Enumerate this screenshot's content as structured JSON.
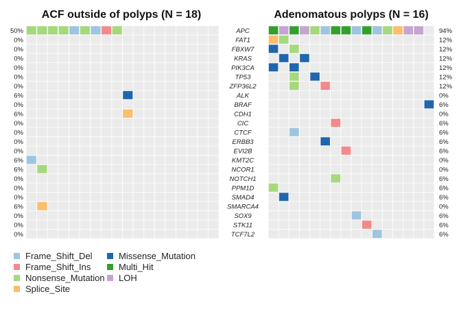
{
  "chart_data": [
    {
      "type": "heatmap",
      "title": "ACF outside of polyps (N = 18)",
      "samples": 18,
      "genes": [
        "APC",
        "FAT1",
        "FBXW7",
        "KRAS",
        "PIK3CA",
        "TP53",
        "ZFP36L2",
        "ALK",
        "BRAF",
        "CDH1",
        "CIC",
        "CTCF",
        "ERBB3",
        "EVI2B",
        "KMT2C",
        "NCOR1",
        "NOTCH1",
        "PPM1D",
        "SMAD4",
        "SMARCA4",
        "SOX9",
        "STK11",
        "TCF7L2"
      ],
      "percentages": [
        "50%",
        "0%",
        "0%",
        "0%",
        "0%",
        "0%",
        "0%",
        "6%",
        "0%",
        "6%",
        "0%",
        "0%",
        "0%",
        "0%",
        "6%",
        "6%",
        "0%",
        "0%",
        "0%",
        "6%",
        "0%",
        "0%",
        "0%"
      ],
      "cells": [
        {
          "gene": "APC",
          "sample": 1,
          "type": "Nonsense_Mutation"
        },
        {
          "gene": "APC",
          "sample": 2,
          "type": "Nonsense_Mutation"
        },
        {
          "gene": "APC",
          "sample": 3,
          "type": "Nonsense_Mutation"
        },
        {
          "gene": "APC",
          "sample": 4,
          "type": "Nonsense_Mutation"
        },
        {
          "gene": "APC",
          "sample": 5,
          "type": "Frame_Shift_Del"
        },
        {
          "gene": "APC",
          "sample": 6,
          "type": "Nonsense_Mutation"
        },
        {
          "gene": "APC",
          "sample": 7,
          "type": "Frame_Shift_Del"
        },
        {
          "gene": "APC",
          "sample": 8,
          "type": "Frame_Shift_Ins"
        },
        {
          "gene": "APC",
          "sample": 9,
          "type": "Nonsense_Mutation"
        },
        {
          "gene": "ALK",
          "sample": 10,
          "type": "Missense_Mutation"
        },
        {
          "gene": "CDH1",
          "sample": 10,
          "type": "Splice_Site"
        },
        {
          "gene": "KMT2C",
          "sample": 1,
          "type": "Frame_Shift_Del"
        },
        {
          "gene": "NCOR1",
          "sample": 2,
          "type": "Nonsense_Mutation"
        },
        {
          "gene": "SMARCA4",
          "sample": 2,
          "type": "Splice_Site"
        }
      ]
    },
    {
      "type": "heatmap",
      "title": "Adenomatous polyps (N = 16)",
      "samples": 16,
      "genes": [
        "APC",
        "FAT1",
        "FBXW7",
        "KRAS",
        "PIK3CA",
        "TP53",
        "ZFP36L2",
        "ALK",
        "BRAF",
        "CDH1",
        "CIC",
        "CTCF",
        "ERBB3",
        "EVI2B",
        "KMT2C",
        "NCOR1",
        "NOTCH1",
        "PPM1D",
        "SMAD4",
        "SMARCA4",
        "SOX9",
        "STK11",
        "TCF7L2"
      ],
      "percentages": [
        "94%",
        "12%",
        "12%",
        "12%",
        "12%",
        "12%",
        "12%",
        "0%",
        "6%",
        "0%",
        "6%",
        "6%",
        "6%",
        "6%",
        "0%",
        "0%",
        "6%",
        "6%",
        "6%",
        "0%",
        "6%",
        "6%",
        "6%"
      ],
      "cells": [
        {
          "gene": "APC",
          "sample": 1,
          "type": "Multi_Hit"
        },
        {
          "gene": "APC",
          "sample": 2,
          "type": "LOH"
        },
        {
          "gene": "APC",
          "sample": 3,
          "type": "Multi_Hit"
        },
        {
          "gene": "APC",
          "sample": 4,
          "type": "LOH"
        },
        {
          "gene": "APC",
          "sample": 5,
          "type": "Nonsense_Mutation"
        },
        {
          "gene": "APC",
          "sample": 6,
          "type": "Frame_Shift_Del"
        },
        {
          "gene": "APC",
          "sample": 7,
          "type": "Multi_Hit"
        },
        {
          "gene": "APC",
          "sample": 8,
          "type": "Multi_Hit"
        },
        {
          "gene": "APC",
          "sample": 9,
          "type": "Frame_Shift_Del"
        },
        {
          "gene": "APC",
          "sample": 10,
          "type": "Multi_Hit"
        },
        {
          "gene": "APC",
          "sample": 11,
          "type": "Frame_Shift_Del"
        },
        {
          "gene": "APC",
          "sample": 12,
          "type": "Nonsense_Mutation"
        },
        {
          "gene": "APC",
          "sample": 13,
          "type": "Splice_Site"
        },
        {
          "gene": "APC",
          "sample": 14,
          "type": "LOH"
        },
        {
          "gene": "APC",
          "sample": 15,
          "type": "LOH"
        },
        {
          "gene": "FAT1",
          "sample": 1,
          "type": "Splice_Site"
        },
        {
          "gene": "FAT1",
          "sample": 2,
          "type": "Nonsense_Mutation"
        },
        {
          "gene": "FBXW7",
          "sample": 1,
          "type": "Missense_Mutation"
        },
        {
          "gene": "FBXW7",
          "sample": 3,
          "type": "Nonsense_Mutation"
        },
        {
          "gene": "KRAS",
          "sample": 2,
          "type": "Missense_Mutation"
        },
        {
          "gene": "KRAS",
          "sample": 4,
          "type": "Missense_Mutation"
        },
        {
          "gene": "PIK3CA",
          "sample": 1,
          "type": "Missense_Mutation"
        },
        {
          "gene": "PIK3CA",
          "sample": 3,
          "type": "Missense_Mutation"
        },
        {
          "gene": "TP53",
          "sample": 3,
          "type": "Nonsense_Mutation"
        },
        {
          "gene": "TP53",
          "sample": 5,
          "type": "Missense_Mutation"
        },
        {
          "gene": "ZFP36L2",
          "sample": 3,
          "type": "Nonsense_Mutation"
        },
        {
          "gene": "ZFP36L2",
          "sample": 6,
          "type": "Frame_Shift_Ins"
        },
        {
          "gene": "BRAF",
          "sample": 16,
          "type": "Missense_Mutation"
        },
        {
          "gene": "CIC",
          "sample": 7,
          "type": "Frame_Shift_Ins"
        },
        {
          "gene": "CTCF",
          "sample": 3,
          "type": "Frame_Shift_Del"
        },
        {
          "gene": "ERBB3",
          "sample": 6,
          "type": "Missense_Mutation"
        },
        {
          "gene": "EVI2B",
          "sample": 8,
          "type": "Frame_Shift_Ins"
        },
        {
          "gene": "NOTCH1",
          "sample": 7,
          "type": "Nonsense_Mutation"
        },
        {
          "gene": "PPM1D",
          "sample": 1,
          "type": "Nonsense_Mutation"
        },
        {
          "gene": "SMAD4",
          "sample": 2,
          "type": "Missense_Mutation"
        },
        {
          "gene": "SOX9",
          "sample": 9,
          "type": "Frame_Shift_Del"
        },
        {
          "gene": "STK11",
          "sample": 10,
          "type": "Frame_Shift_Ins"
        },
        {
          "gene": "TCF7L2",
          "sample": 11,
          "type": "Frame_Shift_Del"
        }
      ]
    }
  ],
  "legend": [
    {
      "type": "Frame_Shift_Del",
      "label": "Frame_Shift_Del",
      "color": "#9ec5e0"
    },
    {
      "type": "Frame_Shift_Ins",
      "label": "Frame_Shift_Ins",
      "color": "#f4898c"
    },
    {
      "type": "Nonsense_Mutation",
      "label": "Nonsense_Mutation",
      "color": "#a6d97b"
    },
    {
      "type": "Splice_Site",
      "label": "Splice_Site",
      "color": "#fdbd6a"
    },
    {
      "type": "Missense_Mutation",
      "label": "Missense_Mutation",
      "color": "#2066ac"
    },
    {
      "type": "Multi_Hit",
      "label": "Multi_Hit",
      "color": "#33a02c"
    },
    {
      "type": "LOH",
      "label": "LOH",
      "color": "#c6a4d2"
    }
  ],
  "background_color": "#ebebeb",
  "grid_color": "#ffffff"
}
